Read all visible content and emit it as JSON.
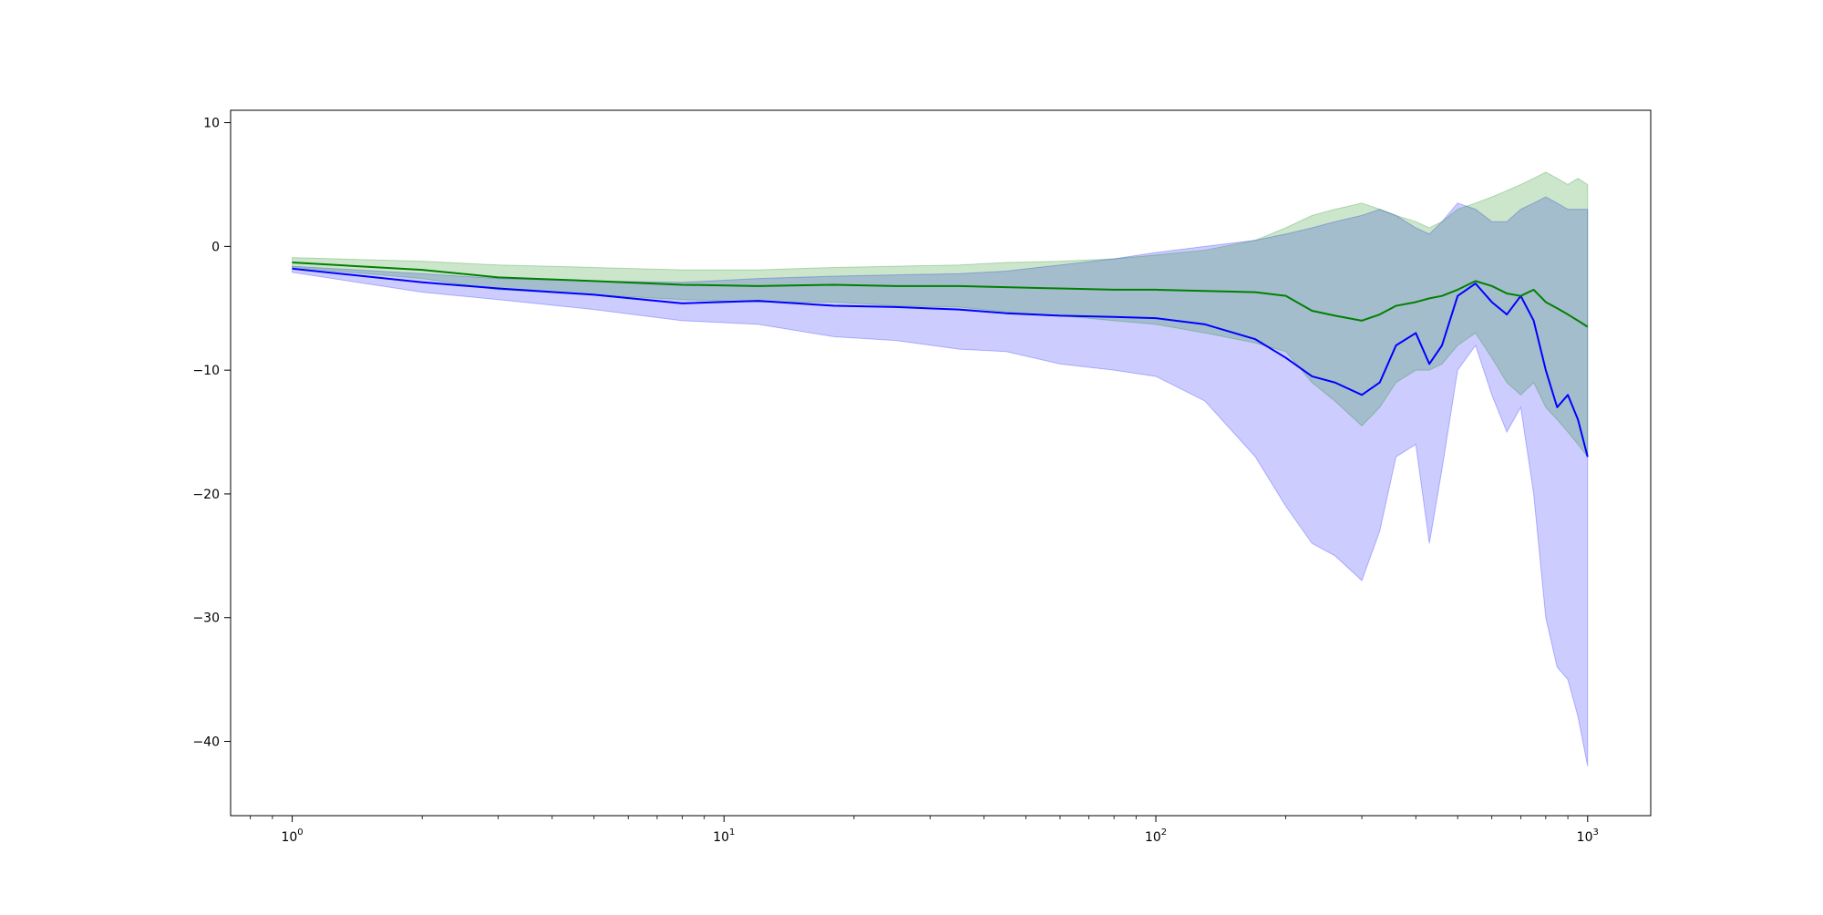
{
  "chart_data": {
    "type": "line",
    "title": "",
    "xlabel": "",
    "ylabel": "",
    "xscale": "log",
    "xlim": [
      0.72,
      1400
    ],
    "ylim": [
      -46,
      11
    ],
    "grid": false,
    "legend": "none",
    "x_ticks": [
      {
        "value": 1,
        "base": "10",
        "exp": "0"
      },
      {
        "value": 10,
        "base": "10",
        "exp": "1"
      },
      {
        "value": 100,
        "base": "10",
        "exp": "2"
      },
      {
        "value": 1000,
        "base": "10",
        "exp": "3"
      }
    ],
    "y_ticks": [
      {
        "value": 10,
        "label": "10"
      },
      {
        "value": 0,
        "label": "0"
      },
      {
        "value": -10,
        "label": "−10"
      },
      {
        "value": -20,
        "label": "−20"
      },
      {
        "value": -30,
        "label": "−30"
      },
      {
        "value": -40,
        "label": "−40"
      }
    ],
    "x": [
      1,
      2,
      3,
      5,
      8,
      12,
      18,
      25,
      35,
      45,
      60,
      80,
      100,
      130,
      170,
      200,
      230,
      260,
      300,
      330,
      360,
      400,
      430,
      460,
      500,
      550,
      600,
      650,
      700,
      750,
      800,
      850,
      900,
      950,
      1000
    ],
    "series": [
      {
        "color": "#0000ff",
        "band_color": "#0000ff",
        "values": [
          -1.8,
          -2.9,
          -3.4,
          -3.9,
          -4.6,
          -4.4,
          -4.8,
          -4.9,
          -5.1,
          -5.4,
          -5.6,
          -5.7,
          -5.8,
          -6.3,
          -7.5,
          -9.0,
          -10.5,
          -11.0,
          -12.0,
          -11.0,
          -8.0,
          -7.0,
          -9.5,
          -8.0,
          -4.0,
          -3.0,
          -4.5,
          -5.5,
          -4.0,
          -6.0,
          -10.0,
          -13.0,
          -12.0,
          -14.0,
          -17.0
        ],
        "upper": [
          -1.6,
          -2.2,
          -2.6,
          -2.8,
          -2.9,
          -2.6,
          -2.4,
          -2.3,
          -2.2,
          -2.0,
          -1.5,
          -1.0,
          -0.5,
          0.0,
          0.5,
          1.0,
          1.5,
          2.0,
          2.5,
          3.0,
          2.5,
          1.5,
          1.0,
          2.0,
          3.5,
          3.0,
          2.0,
          2.0,
          3.0,
          3.5,
          4.0,
          3.5,
          3.0,
          3.0,
          3.0
        ],
        "lower": [
          -2.1,
          -3.7,
          -4.3,
          -5.1,
          -6.0,
          -6.3,
          -7.3,
          -7.6,
          -8.3,
          -8.5,
          -9.5,
          -10.0,
          -10.5,
          -12.5,
          -17.0,
          -21.0,
          -24.0,
          -25.0,
          -27.0,
          -23.0,
          -17.0,
          -16.0,
          -24.0,
          -18.0,
          -10.0,
          -8.0,
          -12.0,
          -15.0,
          -13.0,
          -20.0,
          -30.0,
          -34.0,
          -35.0,
          -38.0,
          -42.0
        ]
      },
      {
        "color": "#008000",
        "band_color": "#008000",
        "values": [
          -1.3,
          -1.9,
          -2.5,
          -2.8,
          -3.1,
          -3.2,
          -3.1,
          -3.2,
          -3.2,
          -3.3,
          -3.4,
          -3.5,
          -3.5,
          -3.6,
          -3.7,
          -4.0,
          -5.2,
          -5.6,
          -6.0,
          -5.5,
          -4.8,
          -4.5,
          -4.2,
          -4.0,
          -3.5,
          -2.8,
          -3.2,
          -3.8,
          -4.0,
          -3.5,
          -4.5,
          -5.0,
          -5.5,
          -6.0,
          -6.5
        ],
        "upper": [
          -0.9,
          -1.2,
          -1.5,
          -1.7,
          -1.9,
          -1.9,
          -1.7,
          -1.6,
          -1.5,
          -1.3,
          -1.2,
          -1.0,
          -0.7,
          -0.3,
          0.5,
          1.5,
          2.5,
          3.0,
          3.5,
          3.0,
          2.5,
          2.0,
          1.5,
          2.0,
          3.0,
          3.5,
          4.0,
          4.5,
          5.0,
          5.5,
          6.0,
          5.5,
          5.0,
          5.5,
          5.0
        ],
        "lower": [
          -1.7,
          -2.6,
          -3.5,
          -3.9,
          -4.3,
          -4.5,
          -4.5,
          -4.8,
          -4.9,
          -5.3,
          -5.6,
          -6.0,
          -6.3,
          -7.0,
          -7.8,
          -8.5,
          -11.0,
          -12.5,
          -14.5,
          -13.0,
          -11.0,
          -10.0,
          -10.0,
          -9.5,
          -8.0,
          -7.0,
          -9.0,
          -11.0,
          -12.0,
          -11.0,
          -13.0,
          -14.0,
          -15.0,
          -16.0,
          -17.0
        ]
      }
    ]
  }
}
